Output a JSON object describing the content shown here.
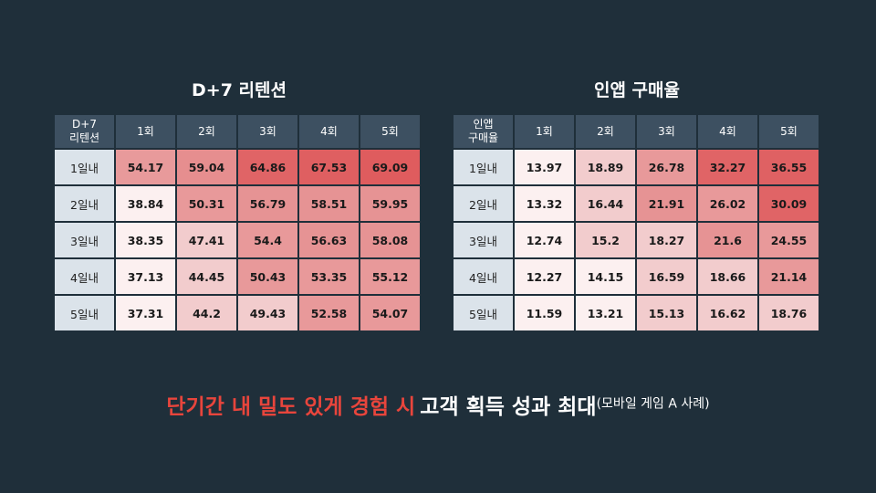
{
  "chart_data": [
    {
      "type": "heatmap",
      "title": "D+7 리텐션",
      "corner_label": "D+7 리텐션",
      "columns": [
        "1회",
        "2회",
        "3회",
        "4회",
        "5회"
      ],
      "rows": [
        "1일내",
        "2일내",
        "3일내",
        "4일내",
        "5일내"
      ],
      "values": [
        [
          54.17,
          59.04,
          64.86,
          67.53,
          69.09
        ],
        [
          38.84,
          50.31,
          56.79,
          58.51,
          59.95
        ],
        [
          38.35,
          47.41,
          54.4,
          56.63,
          58.08
        ],
        [
          37.13,
          44.45,
          50.43,
          53.35,
          55.12
        ],
        [
          37.31,
          44.2,
          49.43,
          52.58,
          54.07
        ]
      ],
      "color_scale": {
        "low": "#fdf1f1",
        "high": "#e05a5a"
      }
    },
    {
      "type": "heatmap",
      "title": "인앱 구매율",
      "corner_label": "인앱 구매율",
      "columns": [
        "1회",
        "2회",
        "3회",
        "4회",
        "5회"
      ],
      "rows": [
        "1일내",
        "2일내",
        "3일내",
        "4일내",
        "5일내"
      ],
      "values": [
        [
          13.97,
          18.89,
          26.78,
          32.27,
          36.55
        ],
        [
          13.32,
          16.44,
          21.91,
          26.02,
          30.09
        ],
        [
          12.74,
          15.2,
          18.27,
          21.6,
          24.55
        ],
        [
          12.27,
          14.15,
          16.59,
          18.66,
          21.14
        ],
        [
          11.59,
          13.21,
          15.13,
          16.62,
          18.76
        ]
      ],
      "color_scale": {
        "low": "#fdf1f1",
        "high": "#e05a5a"
      }
    }
  ],
  "left": {
    "title": "D+7 리텐션",
    "corner_line1": "D+7",
    "corner_line2": "리텐션",
    "columns": [
      "1회",
      "2회",
      "3회",
      "4회",
      "5회"
    ],
    "rows": [
      {
        "label": "1일내",
        "values": [
          "54.17",
          "59.04",
          "64.86",
          "67.53",
          "69.09"
        ],
        "colors": [
          "#e89a9b",
          "#e68e8f",
          "#e06466",
          "#df5f61",
          "#df5c5e"
        ]
      },
      {
        "label": "2일내",
        "values": [
          "38.84",
          "50.31",
          "56.79",
          "58.51",
          "59.95"
        ],
        "colors": [
          "#fcf0f0",
          "#e8999a",
          "#e69394",
          "#e69394",
          "#e69394"
        ]
      },
      {
        "label": "3일내",
        "values": [
          "38.35",
          "47.41",
          "54.4",
          "56.63",
          "58.08"
        ],
        "colors": [
          "#fcf0f0",
          "#f2cccd",
          "#e8999a",
          "#e69394",
          "#e69394"
        ]
      },
      {
        "label": "4일내",
        "values": [
          "37.13",
          "44.45",
          "50.43",
          "53.35",
          "55.12"
        ],
        "colors": [
          "#fcf0f0",
          "#f2cccd",
          "#e8999a",
          "#e8999a",
          "#e8999a"
        ]
      },
      {
        "label": "5일내",
        "values": [
          "37.31",
          "44.2",
          "49.43",
          "52.58",
          "54.07"
        ],
        "colors": [
          "#fcf0f0",
          "#f2cccd",
          "#f2cccd",
          "#e8999a",
          "#e8999a"
        ]
      }
    ]
  },
  "right": {
    "title": "인앱 구매율",
    "corner_line1": "인앱",
    "corner_line2": "구매율",
    "columns": [
      "1회",
      "2회",
      "3회",
      "4회",
      "5회"
    ],
    "rows": [
      {
        "label": "1일내",
        "values": [
          "13.97",
          "18.89",
          "26.78",
          "32.27",
          "36.55"
        ],
        "colors": [
          "#fcf0f0",
          "#f2cccd",
          "#e8999a",
          "#e06466",
          "#df6163"
        ]
      },
      {
        "label": "2일내",
        "values": [
          "13.32",
          "16.44",
          "21.91",
          "26.02",
          "30.09"
        ],
        "colors": [
          "#fcf0f0",
          "#f2cccd",
          "#e69394",
          "#e8999a",
          "#e06466"
        ]
      },
      {
        "label": "3일내",
        "values": [
          "12.74",
          "15.2",
          "18.27",
          "21.6",
          "24.55"
        ],
        "colors": [
          "#fcf0f0",
          "#f2cccd",
          "#f2cccd",
          "#e69394",
          "#e8999a"
        ]
      },
      {
        "label": "4일내",
        "values": [
          "12.27",
          "14.15",
          "16.59",
          "18.66",
          "21.14"
        ],
        "colors": [
          "#fcf0f0",
          "#fcf0f0",
          "#f2cccd",
          "#f2cccd",
          "#e8999a"
        ]
      },
      {
        "label": "5일내",
        "values": [
          "11.59",
          "13.21",
          "15.13",
          "16.62",
          "18.76"
        ],
        "colors": [
          "#fcf0f0",
          "#fcf0f0",
          "#f2cccd",
          "#f2cccd",
          "#f2cccd"
        ]
      }
    ]
  },
  "caption": {
    "red_text": "단기간 내 밀도 있게 경험 시",
    "white_text": "고객 획득 성과 최대",
    "note": "(모바일 게임 A 사례)",
    "red_color": "#e8453c"
  }
}
